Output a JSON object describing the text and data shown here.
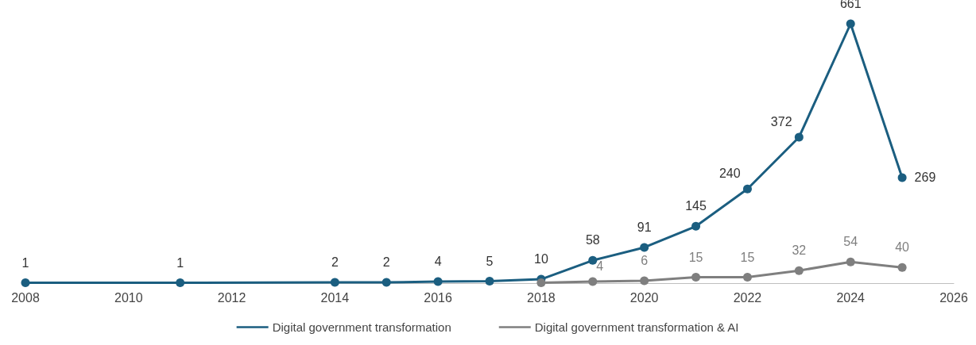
{
  "chart_data": {
    "type": "line",
    "xlim": [
      2008,
      2026
    ],
    "xticks": [
      2008,
      2010,
      2012,
      2014,
      2016,
      2018,
      2020,
      2022,
      2024,
      2026
    ],
    "tick_labels": "x",
    "grid": false,
    "legend": "bottom",
    "marker": "circle",
    "line_style": "solid",
    "series": [
      {
        "name": "Digital government transformation",
        "color": "#1b5e80",
        "x": [
          2008,
          2011,
          2014,
          2015,
          2016,
          2017,
          2018,
          2019,
          2020,
          2021,
          2022,
          2023,
          2024,
          2025
        ],
        "values": [
          1,
          1,
          2,
          2,
          4,
          5,
          10,
          58,
          91,
          145,
          240,
          372,
          661,
          269
        ],
        "value_labels": [
          "1",
          "1",
          "2",
          "2",
          "4",
          "5",
          "10",
          "58",
          "91",
          "145",
          "240",
          "372",
          "661",
          "269"
        ]
      },
      {
        "name": "Digital government transformation & AI",
        "color": "#7f7f7f",
        "x": [
          2018,
          2019,
          2020,
          2021,
          2022,
          2023,
          2024,
          2025
        ],
        "values": [
          1,
          4,
          6,
          15,
          15,
          32,
          54,
          40
        ],
        "value_labels": [
          null,
          "4",
          "6",
          "15",
          "15",
          "32",
          "54",
          "40"
        ]
      }
    ]
  }
}
